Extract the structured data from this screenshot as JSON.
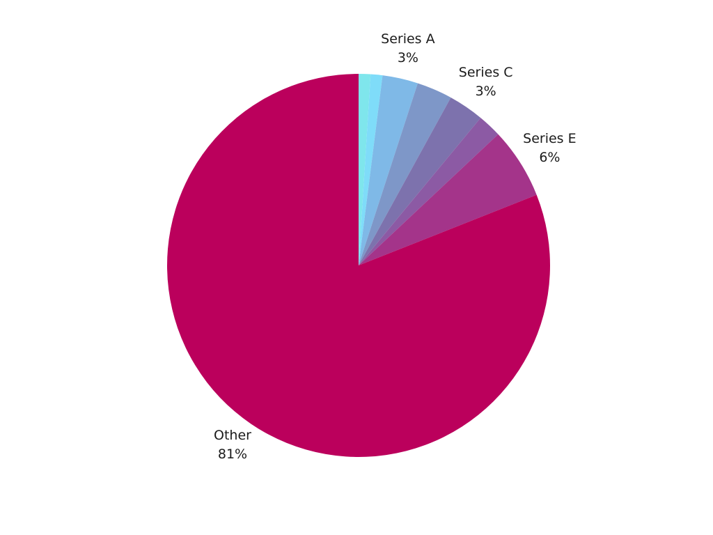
{
  "chart_data": {
    "type": "pie",
    "start_angle": "12 o'clock",
    "direction": "clockwise",
    "slices": [
      {
        "name": "",
        "percent": 1,
        "color": "#7fe6ec"
      },
      {
        "name": "",
        "percent": 1,
        "color": "#7fdcf9"
      },
      {
        "name": "Series A",
        "percent": 3,
        "display": "3%",
        "color": "#7fb9e7"
      },
      {
        "name": "",
        "percent": 3,
        "color": "#7e97c8"
      },
      {
        "name": "Series C",
        "percent": 3,
        "display": "3%",
        "color": "#7d72ad"
      },
      {
        "name": "",
        "percent": 2,
        "color": "#8c5aa4"
      },
      {
        "name": "Series E",
        "percent": 6,
        "display": "6%",
        "color": "#a4348a"
      },
      {
        "name": "Other",
        "percent": 81,
        "display": "81%",
        "color": "#bb005c"
      }
    ]
  }
}
